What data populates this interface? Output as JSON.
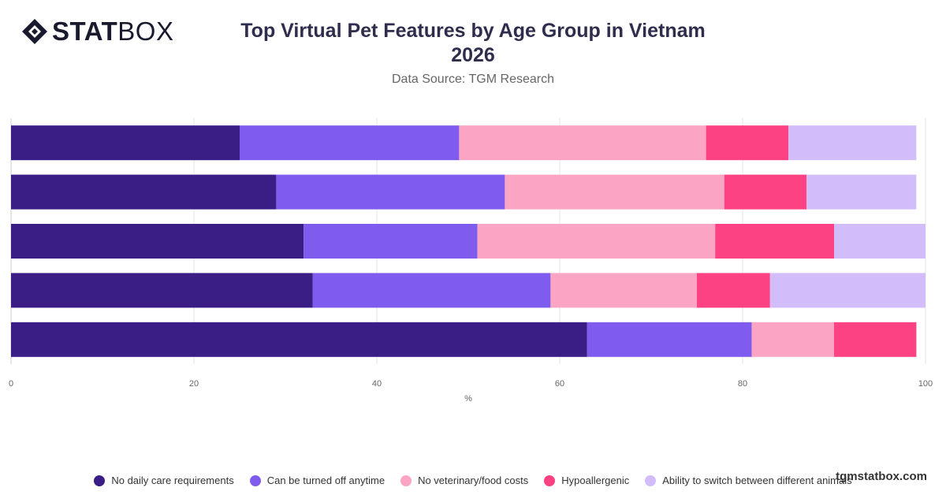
{
  "brand": {
    "bold": "STAT",
    "light": "BOX"
  },
  "title": "Top Virtual Pet Features by Age Group in Vietnam 2026",
  "subtitle": "Data Source: TGM Research",
  "watermark": "tgmstatbox.com",
  "chart_data": {
    "type": "bar",
    "orientation": "horizontal",
    "stacked": true,
    "categories": [
      "",
      "",
      "",
      "",
      ""
    ],
    "xlabel": "%",
    "ylabel": "",
    "xlim": [
      0,
      100
    ],
    "xticks": [
      0,
      20,
      40,
      60,
      80,
      100
    ],
    "grid": true,
    "legend_position": "bottom",
    "series": [
      {
        "name": "No daily care requirements",
        "color": "#3a1e86",
        "values": [
          25,
          29,
          32,
          33,
          63
        ]
      },
      {
        "name": "Can be turned off anytime",
        "color": "#7f5ced",
        "values": [
          24,
          25,
          19,
          26,
          18
        ]
      },
      {
        "name": "No veterinary/food costs",
        "color": "#fba4c3",
        "values": [
          27,
          24,
          26,
          16,
          9
        ]
      },
      {
        "name": "Hypoallergenic",
        "color": "#fd4283",
        "values": [
          9,
          9,
          13,
          8,
          9
        ]
      },
      {
        "name": "Ability to switch between different animals",
        "color": "#d2bcfa",
        "values": [
          14,
          12,
          10,
          17,
          0
        ]
      }
    ]
  }
}
